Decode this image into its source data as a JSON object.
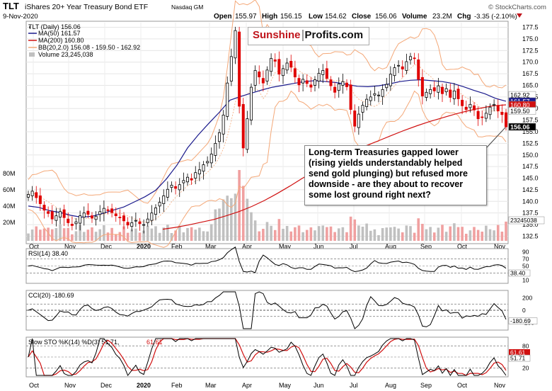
{
  "header": {
    "symbol": "TLT",
    "name": "iShares 20+ Year Treasury Bond ETF",
    "exchange": "Nasdaq GM",
    "date": "9-Nov-2020",
    "open_label": "Open",
    "open": "155.97",
    "high_label": "High",
    "high": "156.15",
    "low_label": "Low",
    "low": "154.62",
    "close_label": "Close",
    "close": "156.06",
    "volume_label": "Volume",
    "volume": "23.2M",
    "chg_label": "Chg",
    "chg": "-3.35 (-2.10%)",
    "source": "© StockCharts.com"
  },
  "legend": {
    "main": "TLT (Daily) 156.06",
    "ma50": "MA(50) 161.57",
    "ma200": "MA(200) 160.80",
    "bb": "BB(20,2.0) 156.08 - 159.50 - 162.92",
    "vol": "Volume 23,245,038"
  },
  "logo": {
    "part1": "Sunshine",
    "part2": "Profits.com"
  },
  "annotation": "Long-term Treasuries gapped lower (rising yields understandably helped send gold plunging) but refused more downside - are they about to recover some lost ground right next?",
  "colors": {
    "up": "#000000",
    "down": "#e00000",
    "ma50": "#1a1a8c",
    "ma200": "#d01010",
    "bb": "#f4a878",
    "rsi": "#000000",
    "cci_fill": "#4a7a3a",
    "cci_neg": "#8b3a3a",
    "sto_k": "#000000",
    "sto_d": "#d01010",
    "vol_up": "#c0c0c0",
    "vol_down": "#f0a0a0"
  },
  "chart_data": {
    "type": "candlestick",
    "title": "TLT (Daily)",
    "price_ticks": [
      "177.5",
      "175.0",
      "172.5",
      "170.0",
      "167.5",
      "165.0",
      "162.5",
      "160.0",
      "157.5",
      "155.0",
      "152.5",
      "150.0",
      "147.5",
      "145.0",
      "142.5",
      "140.0",
      "137.5",
      "135.0",
      "132.5"
    ],
    "price_ylim": [
      131.5,
      178.5
    ],
    "volume_ticks": [
      "80M",
      "60M",
      "40M",
      "20M"
    ],
    "x_months": [
      "Oct",
      "Nov",
      "Dec",
      "2020",
      "Feb",
      "Mar",
      "Apr",
      "May",
      "Jun",
      "Jul",
      "Aug",
      "Sep",
      "Oct",
      "Nov"
    ],
    "last_labels": {
      "upper_bb": "162.92",
      "ma50": "161.57",
      "ma200": "160.80",
      "mid_bb": "159.50",
      "last": "156.06",
      "vol": "23245038"
    },
    "close_series": [
      141.5,
      142.2,
      140.8,
      139.5,
      138.1,
      137.4,
      136.2,
      136.9,
      137.8,
      136.5,
      135.4,
      134.8,
      135.6,
      136.9,
      137.5,
      137.2,
      136.4,
      136.8,
      137.8,
      138.5,
      138.0,
      137.6,
      136.9,
      136.5,
      135.8,
      134.9,
      135.4,
      135.9,
      135.2,
      135.0,
      136.2,
      137.5,
      138.6,
      139.8,
      141.2,
      142.6,
      143.5,
      142.8,
      143.6,
      144.5,
      145.2,
      144.6,
      146.2,
      146.8,
      147.9,
      148.6,
      150.2,
      152.5,
      154.8,
      158.6,
      165.5,
      171.2,
      176.8,
      160.5,
      151.5,
      157.8,
      164.6,
      168.2,
      166.8,
      165.5,
      168.3,
      170.8,
      170.2,
      167.4,
      168.6,
      169.8,
      168.9,
      166.8,
      165.1,
      166.3,
      165.4,
      164.6,
      166.2,
      167.6,
      168.2,
      166.5,
      164.9,
      163.5,
      165.3,
      165.8,
      164.7,
      159.8,
      156.2,
      158.8,
      160.7,
      162.0,
      162.5,
      163.2,
      162.9,
      164.1,
      165.2,
      167.4,
      168.8,
      169.3,
      168.5,
      170.1,
      171.2,
      170.8,
      166.3,
      162.7,
      163.5,
      164.1,
      163.8,
      164.9,
      163.2,
      164.3,
      162.4,
      163.8,
      162.1,
      160.6,
      159.8,
      160.9,
      159.7,
      157.8,
      158.2,
      159.0,
      160.3,
      160.9,
      159.5,
      158.7,
      156.06
    ],
    "ma50_series": [
      139.0,
      138.7,
      138.0,
      137.6,
      137.0,
      136.6,
      136.8,
      137.4,
      138.1,
      138.8,
      139.9,
      141.0,
      142.4,
      144.8,
      147.8,
      151.5,
      154.3,
      156.8,
      159.2,
      161.8,
      162.6,
      163.3,
      164.0,
      164.6,
      165.0,
      165.4,
      165.8,
      166.0,
      165.8,
      165.6,
      165.2,
      164.8,
      164.7,
      164.9,
      165.3,
      165.8,
      166.1,
      166.2,
      166.0,
      165.8,
      165.4,
      164.7,
      163.9,
      163.2,
      162.2,
      161.57
    ],
    "ma200_series": [
      134.0,
      134.4,
      134.9,
      135.5,
      136.1,
      136.9,
      137.8,
      138.9,
      140.2,
      141.7,
      143.3,
      145.0,
      146.6,
      148.1,
      149.5,
      150.8,
      152.0,
      153.1,
      154.2,
      155.3,
      156.3,
      157.2,
      158.0,
      158.8,
      159.5,
      160.1,
      160.6,
      160.8
    ],
    "rsi": {
      "label": "RSI(14) 38.40",
      "ticks": [
        "90",
        "70",
        "50",
        "30",
        "10"
      ],
      "last": "38.40"
    },
    "cci": {
      "label": "CCI(20) -180.69",
      "ticks": [
        "200",
        "0",
        "-200"
      ],
      "last": "-180.69"
    },
    "sto": {
      "label_k": "Slow STO %K(14) %D(3) 51.71,",
      "label_d": "61.61",
      "ticks": [
        "80",
        "50",
        "20"
      ],
      "last_k": "51.71",
      "last_d": "61.61"
    }
  }
}
